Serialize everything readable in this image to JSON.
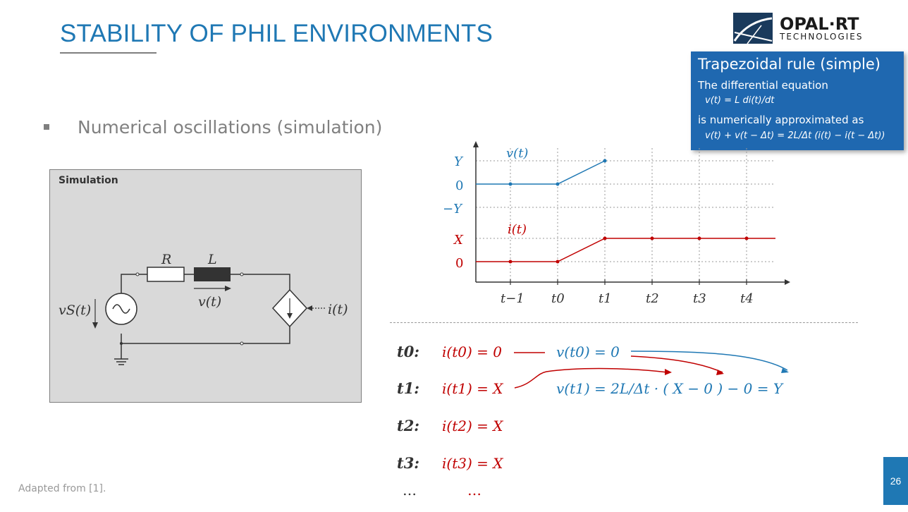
{
  "slide": {
    "title": "STABILITY OF PHIL ENVIRONMENTS",
    "bullet": "Numerical oscillations (simulation)",
    "footer": "Adapted from [1].",
    "page_number": "26"
  },
  "logo": {
    "name": "OPAL-RT",
    "subtitle": "TECHNOLOGIES"
  },
  "info_box": {
    "title": "Trapezoidal rule (simple)",
    "line1": "The differential equation",
    "eq1": "v(t) = L di(t)/dt",
    "line2": "is numerically approximated as",
    "eq2": "v(t) + v(t − Δt) = 2L/Δt (i(t) − i(t − Δt))"
  },
  "circuit": {
    "panel_label": "Simulation",
    "R": "R",
    "L": "L",
    "vs": "vS(t)",
    "vt": "v(t)",
    "it": "i(t)"
  },
  "plot": {
    "v_label": "v(t)",
    "i_label": "i(t)",
    "y_ticks": [
      "Y",
      "0",
      "−Y"
    ],
    "x_tick": "X",
    "zero2": "0",
    "t_ticks": [
      "t−1",
      "t0",
      "t1",
      "t2",
      "t3",
      "t4"
    ],
    "colors": {
      "v": "#1f78b4",
      "i": "#c00000"
    }
  },
  "equations": {
    "rows": [
      {
        "label": "t0:",
        "i_eq": "i(t0) = 0",
        "v_eq": "v(t0) = 0"
      },
      {
        "label": "t1:",
        "i_eq": "i(t1) = X",
        "v_eq": "v(t1) = 2L/Δt · ( X − 0 ) − 0 = Y"
      },
      {
        "label": "t2:",
        "i_eq": "i(t2) = X"
      },
      {
        "label": "t3:",
        "i_eq": "i(t3) = X"
      }
    ],
    "ellipsis": "…"
  }
}
